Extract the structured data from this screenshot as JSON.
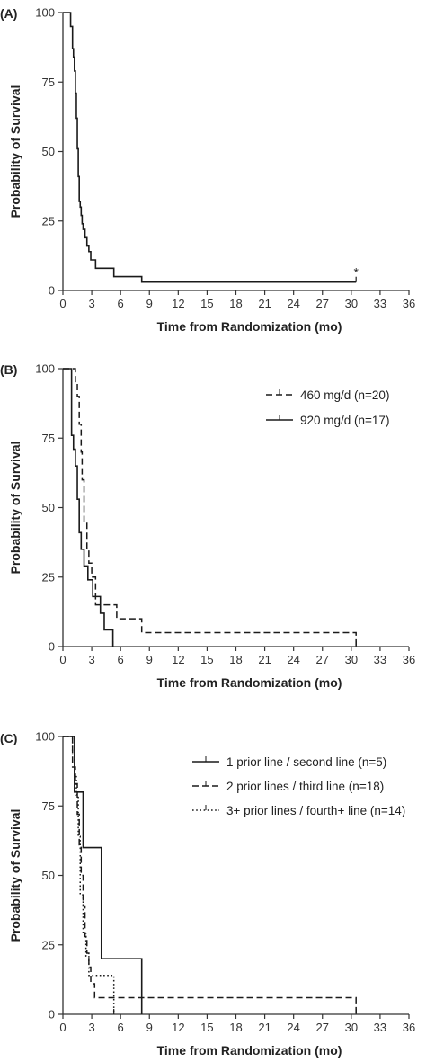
{
  "chart_data": [
    {
      "type": "line",
      "step": true,
      "panel_label": "(A)",
      "xlabel": "Time from Randomization (mo)",
      "ylabel": "Probability of Survival",
      "xlim": [
        0,
        36
      ],
      "ylim": [
        0,
        100
      ],
      "xticks": [
        0,
        3,
        6,
        9,
        12,
        15,
        18,
        21,
        24,
        27,
        30,
        33,
        36
      ],
      "yticks": [
        0,
        25,
        50,
        75,
        100
      ],
      "grid": false,
      "annotations": [
        {
          "text": "*",
          "x": 30.5,
          "y": 3
        }
      ],
      "series": [
        {
          "style": "solid",
          "x": [
            0,
            0.8,
            1.0,
            1.1,
            1.2,
            1.3,
            1.4,
            1.5,
            1.6,
            1.7,
            1.8,
            1.9,
            2.0,
            2.1,
            2.3,
            2.5,
            2.7,
            2.9,
            3.1,
            3.4,
            3.7,
            4.0,
            4.6,
            5.3,
            5.6,
            8.2,
            30.5
          ],
          "y": [
            100,
            95,
            87,
            84,
            79,
            71,
            62,
            51,
            41,
            32,
            30,
            27,
            24,
            22,
            19,
            16,
            14,
            11,
            11,
            8,
            8,
            8,
            8,
            5,
            5,
            3,
            3
          ]
        }
      ]
    },
    {
      "type": "line",
      "step": true,
      "panel_label": "(B)",
      "xlabel": "Time from Randomization (mo)",
      "ylabel": "Probability of Survival",
      "xlim": [
        0,
        36
      ],
      "ylim": [
        0,
        100
      ],
      "xticks": [
        0,
        3,
        6,
        9,
        12,
        15,
        18,
        21,
        24,
        27,
        30,
        33,
        36
      ],
      "yticks": [
        0,
        25,
        50,
        75,
        100
      ],
      "grid": false,
      "legend": "top-right",
      "series": [
        {
          "name": "460 mg/d (n=20)",
          "style": "dashed",
          "x": [
            0,
            1.3,
            1.5,
            1.7,
            1.9,
            2.0,
            2.2,
            2.5,
            2.7,
            3.0,
            3.4,
            4.6,
            5.6,
            8.2,
            30.5
          ],
          "y": [
            100,
            95,
            90,
            80,
            70,
            60,
            45,
            35,
            30,
            25,
            15,
            15,
            10,
            5,
            0
          ]
        },
        {
          "name": "920 mg/d (n=17)",
          "style": "solid",
          "x": [
            0,
            0.9,
            1.1,
            1.3,
            1.5,
            1.7,
            1.9,
            2.2,
            2.6,
            3.1,
            3.9,
            4.3,
            5.2
          ],
          "y": [
            100,
            76,
            71,
            65,
            53,
            41,
            35,
            29,
            24,
            18,
            12,
            6,
            0
          ]
        }
      ]
    },
    {
      "type": "line",
      "step": true,
      "panel_label": "(C)",
      "xlabel": "Time from Randomization (mo)",
      "ylabel": "Probability of Survival",
      "xlim": [
        0,
        36
      ],
      "ylim": [
        0,
        100
      ],
      "xticks": [
        0,
        3,
        6,
        9,
        12,
        15,
        18,
        21,
        24,
        27,
        30,
        33,
        36
      ],
      "yticks": [
        0,
        25,
        50,
        75,
        100
      ],
      "grid": false,
      "legend": "top-right",
      "series": [
        {
          "name": "1 prior line / second line (n=5)",
          "style": "solid",
          "x": [
            0,
            1.2,
            2.1,
            4.0,
            8.2
          ],
          "y": [
            100,
            80,
            60,
            20,
            0
          ]
        },
        {
          "name": "2 prior lines / third line (n=18)",
          "style": "dashed",
          "x": [
            0,
            1.0,
            1.3,
            1.5,
            1.7,
            1.9,
            2.1,
            2.3,
            2.5,
            2.7,
            2.9,
            3.3,
            30.5
          ],
          "y": [
            100,
            89,
            83,
            72,
            61,
            50,
            39,
            28,
            22,
            17,
            11,
            6,
            0
          ]
        },
        {
          "name": "3+ prior lines / fourth+ line (n=14)",
          "style": "dotted",
          "x": [
            0,
            1.0,
            1.2,
            1.4,
            1.6,
            1.8,
            2.1,
            2.4,
            2.7,
            3.0,
            5.3
          ],
          "y": [
            100,
            93,
            86,
            79,
            64,
            43,
            29,
            21,
            14,
            14,
            0
          ]
        }
      ]
    }
  ]
}
